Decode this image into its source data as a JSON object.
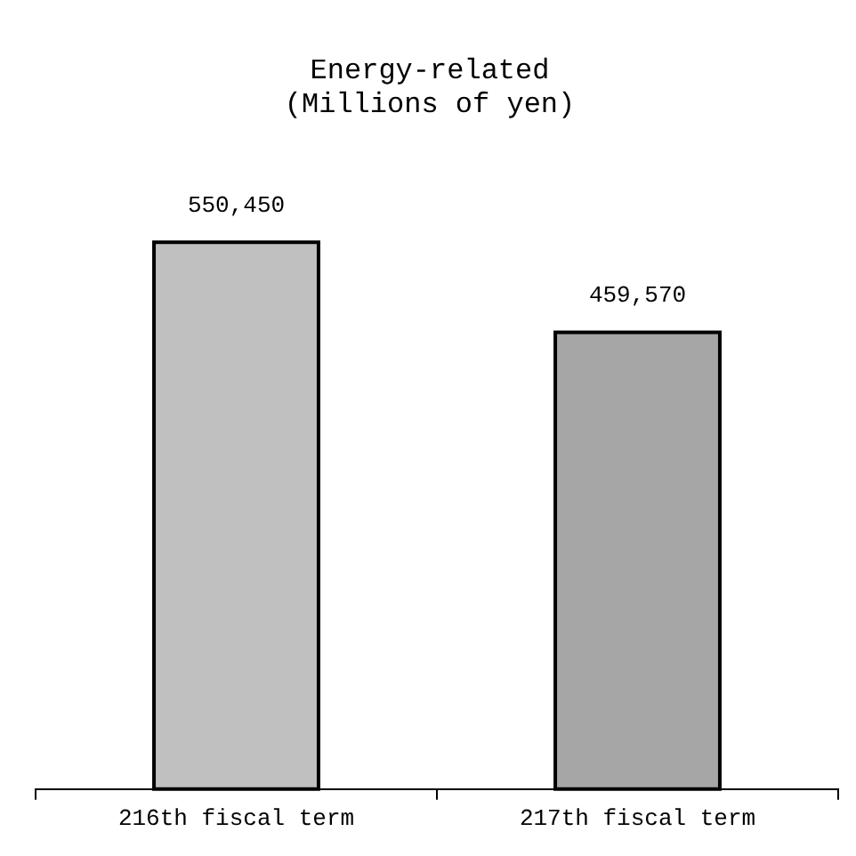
{
  "chart_data": {
    "type": "bar",
    "title": "Energy-related\n(Millions of yen)",
    "categories": [
      "216th fiscal term",
      "217th fiscal term"
    ],
    "values": [
      550450,
      459570
    ],
    "colors": [
      "#c0c0c0",
      "#a6a6a6"
    ],
    "value_labels": [
      "550,450",
      "459,570"
    ],
    "legend": false,
    "grid": false
  }
}
